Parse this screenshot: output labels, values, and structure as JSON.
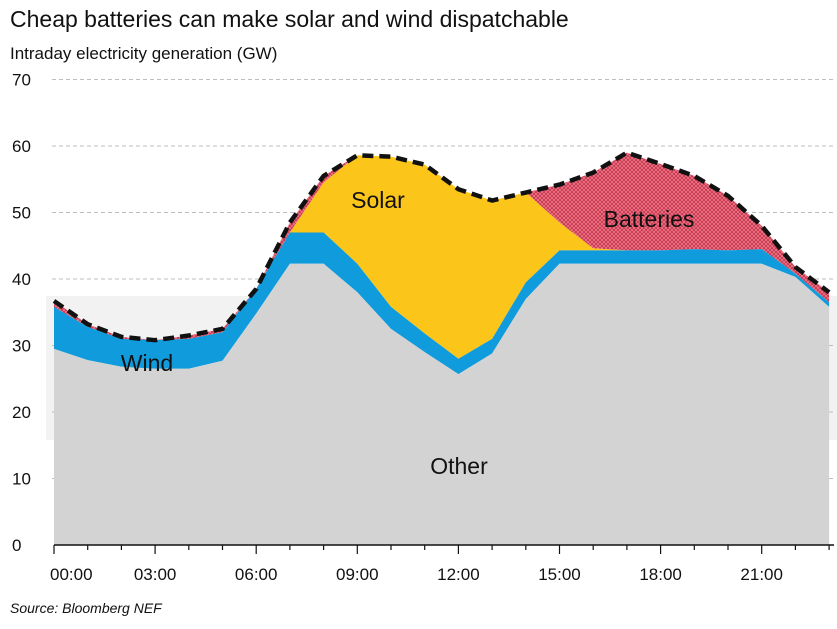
{
  "title": "Cheap batteries can make solar and wind dispatchable",
  "source": "Source: Bloomberg NEF",
  "colors": {
    "other": "#d3d3d3",
    "wind": "#0f9bdc",
    "solar": "#fcc51a",
    "batteries": "#ef7a8a",
    "batteries_hatch": "#c6364f",
    "total_line": "#111111",
    "grid": "#bdbdbd"
  },
  "chart_data": {
    "type": "area",
    "title": "Cheap batteries can make solar and wind dispatchable",
    "ylabel": "Intraday electricity generation (GW)",
    "xlabel": "",
    "ylim": [
      0,
      70
    ],
    "xlim": [
      0,
      23
    ],
    "yticks": [
      0,
      10,
      20,
      30,
      40,
      50,
      60,
      70
    ],
    "xtick_labels": [
      "00:00",
      "03:00",
      "06:00",
      "09:00",
      "12:00",
      "15:00",
      "18:00",
      "21:00"
    ],
    "xtick_hours": [
      0,
      3,
      6,
      9,
      12,
      15,
      18,
      21
    ],
    "grid": true,
    "x": [
      0,
      1,
      2,
      3,
      4,
      5,
      6,
      7,
      8,
      9,
      10,
      11,
      12,
      13,
      14,
      15,
      16,
      17,
      18,
      19,
      20,
      21,
      22,
      23
    ],
    "series": [
      {
        "name": "Other",
        "cumulative_top": [
          29.5,
          27.8,
          26.8,
          26.5,
          26.5,
          27.7,
          34.8,
          42.3,
          42.3,
          38.0,
          32.5,
          29.0,
          25.7,
          28.8,
          37.0,
          42.3,
          42.3,
          42.3,
          42.3,
          42.3,
          42.3,
          42.3,
          40.3,
          35.8
        ]
      },
      {
        "name": "Wind",
        "cumulative_top": [
          35.8,
          32.8,
          31.0,
          30.8,
          31.0,
          32.0,
          38.5,
          47.0,
          47.0,
          42.3,
          35.8,
          31.8,
          28.0,
          31.0,
          39.5,
          44.3,
          44.3,
          44.3,
          44.3,
          44.5,
          44.3,
          44.5,
          40.8,
          36.5
        ]
      },
      {
        "name": "Solar",
        "cumulative_top": [
          35.8,
          32.8,
          31.0,
          30.8,
          31.0,
          32.0,
          38.5,
          47.0,
          54.5,
          58.6,
          58.4,
          57.2,
          53.5,
          51.8,
          53.0,
          48.5,
          44.6,
          44.3,
          44.3,
          44.5,
          44.3,
          44.5,
          40.8,
          36.5
        ]
      },
      {
        "name": "Batteries",
        "cumulative_top": [
          36.7,
          33.2,
          31.3,
          30.8,
          31.5,
          32.5,
          38.5,
          48.5,
          55.5,
          58.6,
          58.4,
          57.2,
          53.5,
          51.8,
          53.0,
          54.2,
          56.0,
          59.0,
          57.3,
          55.5,
          52.5,
          48.0,
          41.8,
          38.0
        ]
      }
    ],
    "total": [
      36.7,
      33.2,
      31.3,
      30.8,
      31.5,
      32.5,
      38.5,
      48.5,
      55.5,
      58.6,
      58.4,
      57.2,
      53.5,
      51.8,
      53.0,
      54.2,
      56.0,
      59.0,
      57.3,
      55.5,
      52.5,
      48.0,
      41.8,
      38.0
    ],
    "area_labels": [
      "Wind",
      "Solar",
      "Batteries",
      "Other"
    ]
  }
}
